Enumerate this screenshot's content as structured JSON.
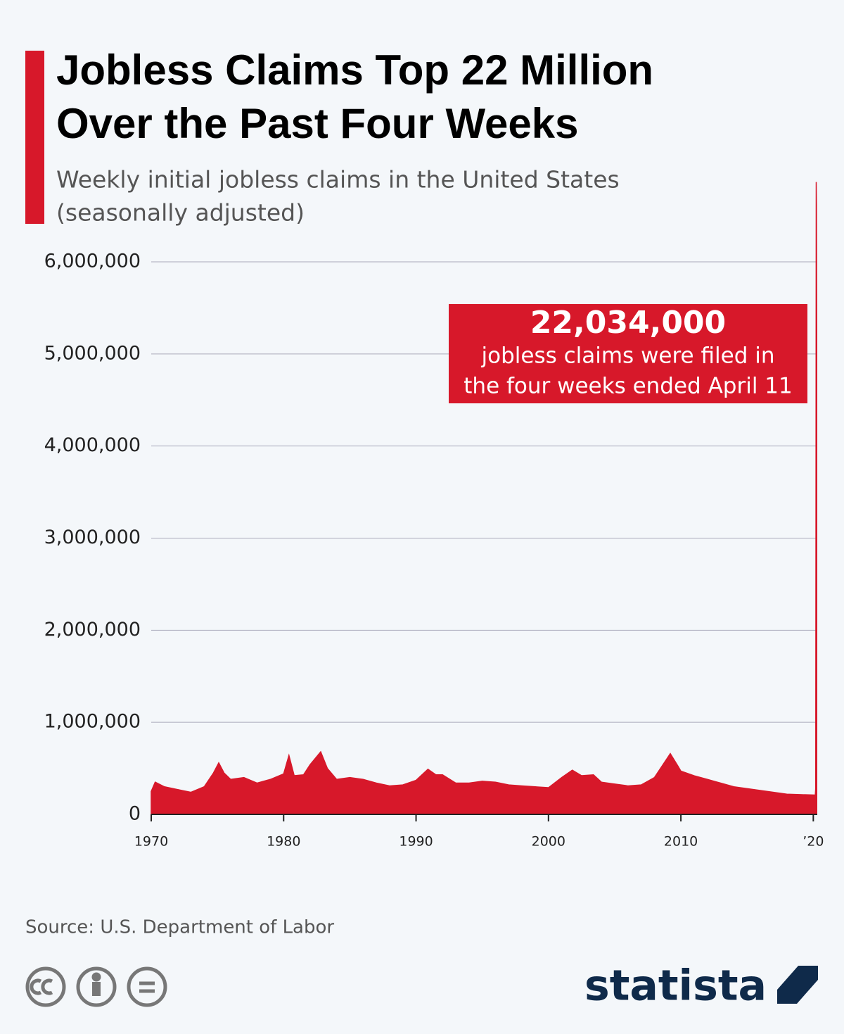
{
  "chart_data": {
    "type": "area",
    "title": [
      "Jobless Claims Top 22 Million",
      "Over the Past Four Weeks"
    ],
    "subtitle": [
      "Weekly initial jobless claims in the United States",
      "(seasonally adjusted)"
    ],
    "annotation": {
      "headline": "22,034,000",
      "lines": [
        "jobless claims were filed in",
        "the four weeks ended April 11"
      ]
    },
    "source": "Source: U.S. Department of Labor",
    "brand": "statista",
    "color": "#d7182a",
    "grid": true,
    "xlim": [
      1970,
      2020.3
    ],
    "xticks": [
      1970,
      1980,
      1990,
      2000,
      2010,
      {
        "value": 2020,
        "label": "’20"
      }
    ],
    "ylim": [
      0,
      6000000
    ],
    "yticks": [
      0,
      {
        "value": 1000000,
        "label": "1,000,000"
      },
      {
        "value": 2000000,
        "label": "2,000,000"
      },
      {
        "value": 3000000,
        "label": "3,000,000"
      },
      {
        "value": 4000000,
        "label": "4,000,000"
      },
      {
        "value": 5000000,
        "label": "5,000,000"
      },
      {
        "value": 6000000,
        "label": "6,000,000"
      }
    ],
    "x": [
      1970.0,
      1970.3,
      1971,
      1972,
      1973,
      1974,
      1974.7,
      1975.1,
      1975.5,
      1976,
      1977,
      1978,
      1979,
      1980,
      1980.4,
      1980.8,
      1981.5,
      1982,
      1982.8,
      1983.3,
      1984,
      1985,
      1986,
      1987,
      1988,
      1989,
      1990,
      1990.9,
      1991.5,
      1992,
      1993,
      1994,
      1995,
      1996,
      1997,
      1998,
      1999,
      2000,
      2001,
      2001.8,
      2002.5,
      2003.4,
      2004,
      2005,
      2006,
      2007,
      2008,
      2009.2,
      2009.8,
      2010,
      2011,
      2012,
      2013,
      2014,
      2015,
      2016,
      2017,
      2018,
      2019,
      2020.15,
      2020.18,
      2020.2,
      2020.22,
      2020.24,
      2020.26
    ],
    "values": [
      250000,
      350000,
      300000,
      270000,
      240000,
      300000,
      450000,
      560000,
      450000,
      380000,
      400000,
      340000,
      380000,
      440000,
      640000,
      420000,
      430000,
      540000,
      680000,
      500000,
      380000,
      400000,
      380000,
      340000,
      310000,
      320000,
      370000,
      490000,
      430000,
      430000,
      340000,
      340000,
      360000,
      350000,
      320000,
      310000,
      300000,
      290000,
      400000,
      480000,
      420000,
      430000,
      350000,
      330000,
      310000,
      320000,
      400000,
      660000,
      520000,
      470000,
      420000,
      380000,
      340000,
      300000,
      280000,
      260000,
      240000,
      220000,
      215000,
      210000,
      282000,
      3307000,
      6867000,
      6615000,
      5245000
    ]
  }
}
